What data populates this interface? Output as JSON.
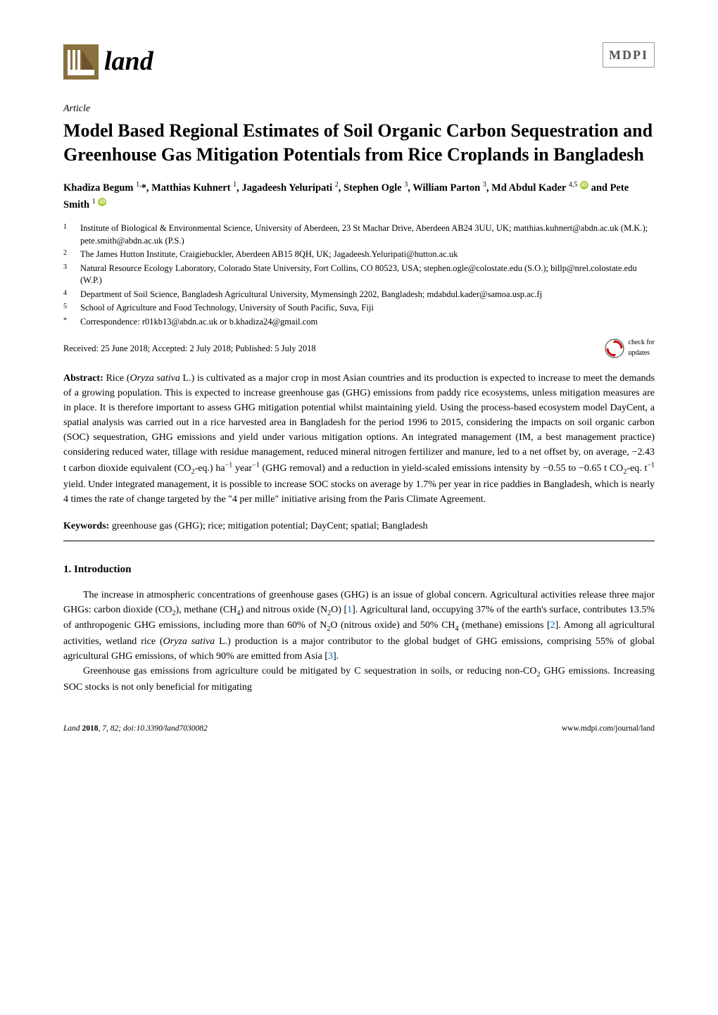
{
  "journal": {
    "logo_text": "land",
    "logo_bg_color": "#8b7040",
    "logo_bars_color": "#ffffff",
    "publisher_logo": "MDPI"
  },
  "article": {
    "type_label": "Article",
    "title": "Model Based Regional Estimates of Soil Organic Carbon Sequestration and Greenhouse Gas Mitigation Potentials from Rice Croplands in Bangladesh",
    "authors_html": "Khadiza Begum <sup>1,</sup>*, Matthias Kuhnert <sup>1</sup>, Jagadeesh Yeluripati <sup>2</sup>, Stephen Ogle <sup>3</sup>, William Parton <sup>3</sup>, Md Abdul Kader <sup>4,5</sup> <span class='orcid-icon'>iD</span> and Pete Smith <sup>1</sup> <span class='orcid-icon'>iD</span>",
    "affiliations": [
      {
        "num": "1",
        "text": "Institute of Biological & Environmental Science, University of Aberdeen, 23 St Machar Drive, Aberdeen AB24 3UU, UK; matthias.kuhnert@abdn.ac.uk (M.K.); pete.smith@abdn.ac.uk (P.S.)"
      },
      {
        "num": "2",
        "text": "The James Hutton Institute, Craigiebuckler, Aberdeen AB15 8QH, UK; Jagadeesh.Yeluripati@hutton.ac.uk"
      },
      {
        "num": "3",
        "text": "Natural Resource Ecology Laboratory, Colorado State University, Fort Collins, CO 80523, USA; stephen.ogle@colostate.edu (S.O.); billp@nrel.colostate.edu (W.P.)"
      },
      {
        "num": "4",
        "text": "Department of Soil Science, Bangladesh Agricultural University, Mymensingh 2202, Bangladesh; mdabdul.kader@samoa.usp.ac.fj"
      },
      {
        "num": "5",
        "text": "School of Agriculture and Food Technology, University of South Pacific, Suva, Fiji"
      },
      {
        "num": "*",
        "text": "Correspondence: r01kb13@abdn.ac.uk or b.khadiza24@gmail.com"
      }
    ],
    "received": "Received: 25 June 2018; Accepted: 2 July 2018; Published: 5 July 2018",
    "check_updates_text": "check for\nupdates",
    "abstract_label": "Abstract:",
    "abstract_html": "Rice (<i>Oryza sativa</i> L.) is cultivated as a major crop in most Asian countries and its production is expected to increase to meet the demands of a growing population. This is expected to increase greenhouse gas (GHG) emissions from paddy rice ecosystems, unless mitigation measures are in place. It is therefore important to assess GHG mitigation potential whilst maintaining yield. Using the process-based ecosystem model DayCent, a spatial analysis was carried out in a rice harvested area in Bangladesh for the period 1996 to 2015, considering the impacts on soil organic carbon (SOC) sequestration, GHG emissions and yield under various mitigation options. An integrated management (IM, a best management practice) considering reduced water, tillage with residue management, reduced mineral nitrogen fertilizer and manure, led to a net offset by, on average, −2.43 t carbon dioxide equivalent (CO<sub>2</sub>-eq.) ha<sup>−1</sup> year<sup>−1</sup> (GHG removal) and a reduction in yield-scaled emissions intensity by −0.55 to −0.65 t CO<sub>2</sub>-eq. t<sup>−1</sup> yield. Under integrated management, it is possible to increase SOC stocks on average by 1.7% per year in rice paddies in Bangladesh, which is nearly 4 times the rate of change targeted by the \"4 per mille\" initiative arising from the Paris Climate Agreement.",
    "keywords_label": "Keywords:",
    "keywords": "greenhouse gas (GHG); rice; mitigation potential; DayCent; spatial; Bangladesh"
  },
  "section1": {
    "heading": "1. Introduction",
    "para1_html": "The increase in atmospheric concentrations of greenhouse gases (GHG) is an issue of global concern. Agricultural activities release three major GHGs: carbon dioxide (CO<sub>2</sub>), methane (CH<sub>4</sub>) and nitrous oxide (N<sub>2</sub>O) [<span class='ref-link'>1</span>]. Agricultural land, occupying 37% of the earth's surface, contributes 13.5% of anthropogenic GHG emissions, including more than 60% of N<sub>2</sub>O (nitrous oxide) and 50% CH<sub>4</sub> (methane) emissions [<span class='ref-link'>2</span>]. Among all agricultural activities, wetland rice (<i>Oryza sativa</i> L.) production is a major contributor to the global budget of GHG emissions, comprising 55% of global agricultural GHG emissions, of which 90% are emitted from Asia [<span class='ref-link'>3</span>].",
    "para2_html": "Greenhouse gas emissions from agriculture could be mitigated by C sequestration in soils, or reducing non-CO<sub>2</sub> GHG emissions. Increasing SOC stocks is not only beneficial for mitigating"
  },
  "footer": {
    "left_html": "<i>Land</i> <span class='bold'>2018</span>, <i>7</i>, 82; doi:10.3390/land7030082",
    "right": "www.mdpi.com/journal/land"
  }
}
